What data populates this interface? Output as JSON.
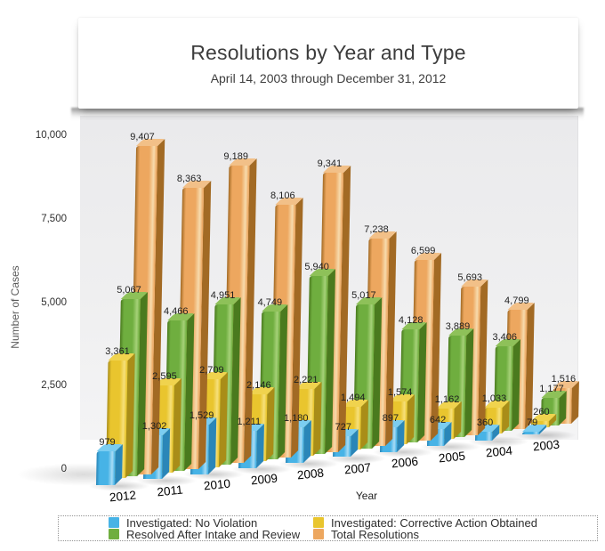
{
  "title": {
    "text": "Resolutions by Year and Type",
    "subtitle": "April 14, 2003 through December 31, 2012"
  },
  "chart_data": {
    "type": "bar",
    "style": "3d-grouped",
    "categories": [
      "2012",
      "2011",
      "2010",
      "2009",
      "2008",
      "2007",
      "2006",
      "2005",
      "2004",
      "2003"
    ],
    "series": [
      {
        "name": "Investigated: No Violation",
        "values": [
          979,
          1302,
          1529,
          1211,
          1180,
          727,
          897,
          642,
          360,
          79
        ],
        "color": {
          "front": "#47b3e6",
          "highlight": "#a9dcf5",
          "side": "#2a86b8",
          "top": "#7bcdf1"
        }
      },
      {
        "name": "Investigated: Corrective Action Obtained",
        "values": [
          3361,
          2595,
          2709,
          2146,
          2221,
          1494,
          1574,
          1162,
          1033,
          260
        ],
        "color": {
          "front": "#e9c52e",
          "highlight": "#f6e07b",
          "side": "#a98d18",
          "top": "#f0d34e"
        }
      },
      {
        "name": "Resolved After Intake and Review",
        "values": [
          5067,
          4466,
          4951,
          4749,
          5940,
          5017,
          4128,
          3889,
          3406,
          1177
        ],
        "color": {
          "front": "#6fae3f",
          "highlight": "#a6d178",
          "side": "#4a7a1e",
          "top": "#8ec159"
        }
      },
      {
        "name": "Total Resolutions",
        "values": [
          9407,
          8363,
          9189,
          8106,
          9341,
          7238,
          6599,
          5693,
          4799,
          1516
        ],
        "color": {
          "front": "#eda75f",
          "highlight": "#f7dbad",
          "side": "#a26a24",
          "top": "#f2c088"
        }
      }
    ],
    "xlabel": "Year",
    "ylabel": "Number of Cases",
    "ylim": [
      0,
      10000
    ],
    "yticks": [
      0,
      2500,
      5000,
      7500,
      10000
    ],
    "grid": false,
    "legend_position": "bottom"
  },
  "legend": {
    "items": [
      {
        "label": "Investigated: No Violation",
        "color": "#47b3e6"
      },
      {
        "label": "Resolved After Intake and Review",
        "color": "#6fae3f"
      },
      {
        "label": "Investigated: Corrective Action Obtained",
        "color": "#e9c52e"
      },
      {
        "label": "Total Resolutions",
        "color": "#eda75f"
      }
    ]
  },
  "panel_colors": {
    "background_top": "#eaeaec",
    "background_bottom": "#f4f4f5"
  }
}
